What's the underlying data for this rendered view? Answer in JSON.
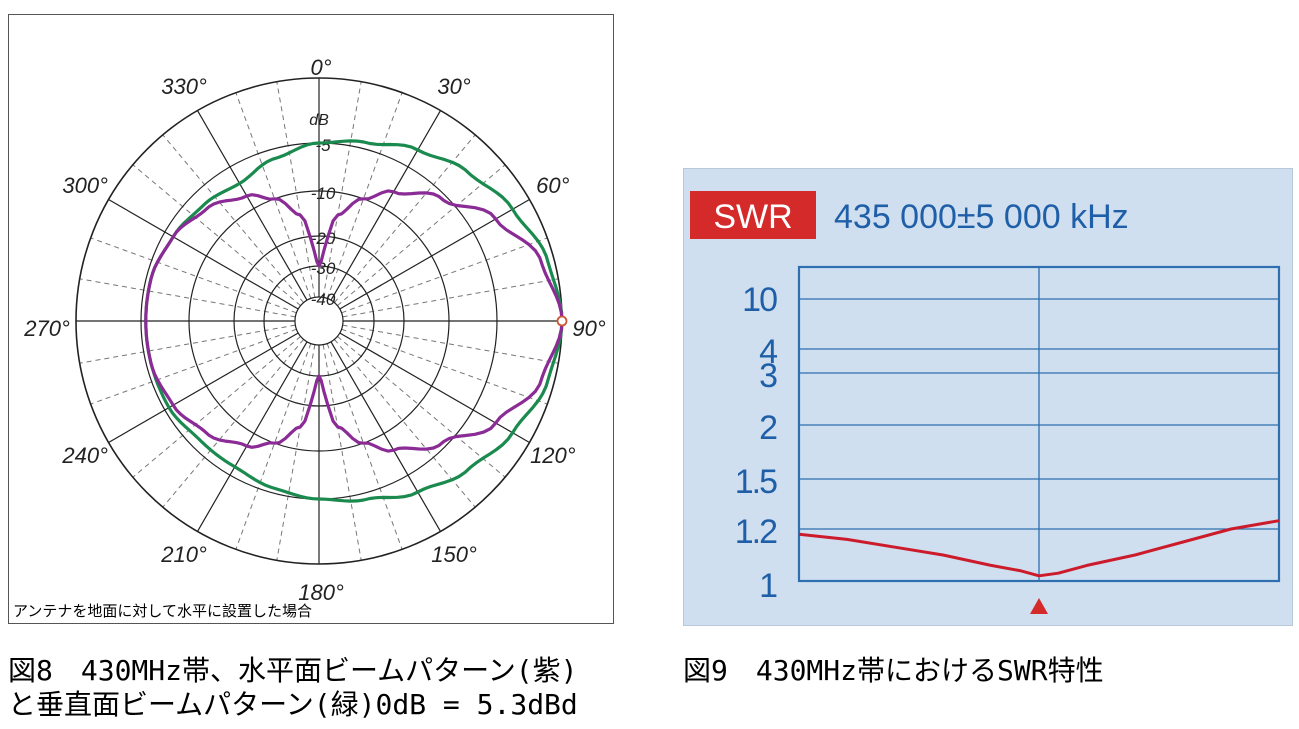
{
  "figure8": {
    "db_unit": "dB",
    "angle_labels": [
      {
        "deg": 0,
        "text": "0°"
      },
      {
        "deg": 30,
        "text": "30°"
      },
      {
        "deg": 60,
        "text": "60°"
      },
      {
        "deg": 90,
        "text": "90°"
      },
      {
        "deg": 120,
        "text": "120°"
      },
      {
        "deg": 150,
        "text": "150°"
      },
      {
        "deg": 180,
        "text": "180°"
      },
      {
        "deg": 210,
        "text": "210°"
      },
      {
        "deg": 240,
        "text": "240°"
      },
      {
        "deg": 270,
        "text": "270°"
      },
      {
        "deg": 300,
        "text": "300°"
      },
      {
        "deg": 330,
        "text": "330°"
      }
    ],
    "db_rings": [
      {
        "db": -5,
        "label": "-5"
      },
      {
        "db": -10,
        "label": "-10"
      },
      {
        "db": -20,
        "label": "-20"
      },
      {
        "db": -30,
        "label": "-30"
      },
      {
        "db": -40,
        "label": "-40"
      }
    ],
    "note": "アンテナを地面に対して水平に設置した場合",
    "colors": {
      "horizontal": "#8a2b96",
      "vertical": "#1a8a4e",
      "grid": "#222222",
      "marker": "#cc5533"
    }
  },
  "figure9": {
    "badge": "SWR",
    "freq": "435 000±5 000 kHz",
    "y_ticks": [
      {
        "v": 10,
        "label": "10"
      },
      {
        "v": 4,
        "label": "4"
      },
      {
        "v": 3,
        "label": "3"
      },
      {
        "v": 2,
        "label": "2"
      },
      {
        "v": 1.5,
        "label": "1.5"
      },
      {
        "v": 1.2,
        "label": "1.2"
      },
      {
        "v": 1,
        "label": "1"
      }
    ],
    "colors": {
      "background": "#cfdff0",
      "grid": "#2f6fb0",
      "text": "#1f5fa8",
      "badge_bg": "#d42a2a",
      "curve": "#cc1c2c"
    }
  },
  "chart_data": [
    {
      "type": "polar",
      "r_unit": "dB",
      "r_range": [
        -40,
        0
      ],
      "angle_ticks_deg": [
        0,
        30,
        60,
        90,
        120,
        150,
        180,
        210,
        240,
        270,
        300,
        330
      ],
      "series": [
        {
          "color": "#8a2b96",
          "angle_deg": [
            0,
            10,
            20,
            30,
            45,
            60,
            75,
            90,
            105,
            120,
            135,
            150,
            160,
            170,
            180,
            190,
            200,
            210,
            225,
            240,
            255,
            270,
            285,
            300,
            315,
            330,
            340,
            350,
            360
          ],
          "db": [
            -30,
            -15,
            -10,
            -8,
            -5.5,
            -3,
            -1,
            0,
            -1,
            -3,
            -5.5,
            -8,
            -10,
            -15,
            -30,
            -15,
            -10,
            -8.5,
            -7,
            -6,
            -5.5,
            -5.5,
            -5.5,
            -6,
            -7,
            -8.5,
            -10,
            -15,
            -30
          ]
        },
        {
          "color": "#1a8a4e",
          "angle_deg": [
            0,
            15,
            30,
            45,
            60,
            75,
            90,
            105,
            120,
            135,
            150,
            165,
            180,
            195,
            210,
            225,
            240,
            255,
            270,
            285,
            300,
            315,
            330,
            345,
            360
          ],
          "db": [
            -5,
            -4.5,
            -3.5,
            -2.5,
            -1.5,
            -0.5,
            0,
            -0.5,
            -1.5,
            -2.5,
            -3.5,
            -4.5,
            -5,
            -5.5,
            -6,
            -6,
            -5.5,
            -5.5,
            -5.5,
            -5.5,
            -6,
            -6.5,
            -7,
            -6,
            -5
          ]
        }
      ]
    },
    {
      "type": "line",
      "x_range": [
        "430 000 kHz",
        "440 000 kHz"
      ],
      "x_center": "435 000 kHz",
      "y_scale": "swr",
      "y_ticks": [
        1,
        1.2,
        1.5,
        2,
        3,
        4,
        10
      ],
      "series": [
        {
          "color": "#cc1c2c",
          "x_khz": [
            430000,
            431000,
            432000,
            433000,
            434000,
            434600,
            435000,
            435400,
            436000,
            437000,
            438000,
            439000,
            440000
          ],
          "y": [
            1.18,
            1.16,
            1.13,
            1.1,
            1.06,
            1.04,
            1.02,
            1.03,
            1.06,
            1.1,
            1.15,
            1.2,
            1.25
          ]
        }
      ]
    }
  ],
  "captions": {
    "fig8": "図8　430MHz帯、水平面ビームパターン(紫)\nと垂直面ビームパターン(緑)0dB = 5.3dBd",
    "fig9": "図9　430MHz帯におけるSWR特性"
  }
}
